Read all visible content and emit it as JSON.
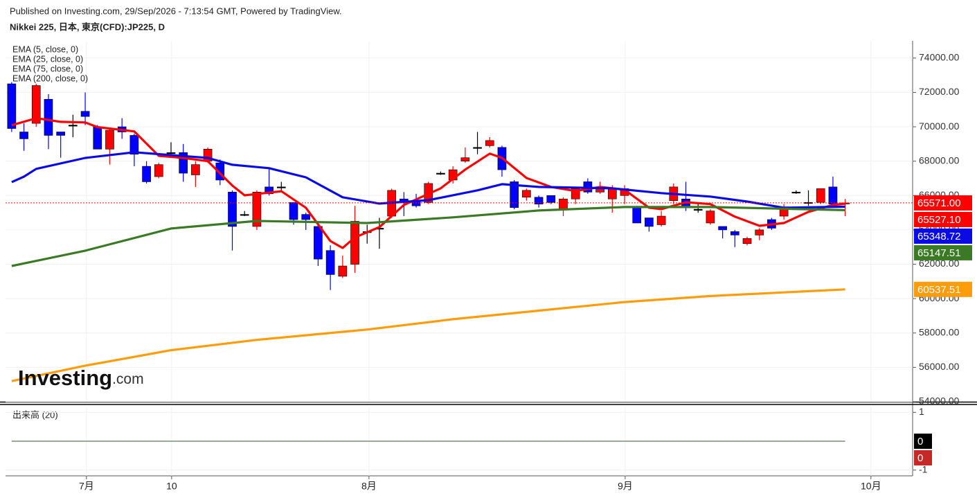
{
  "header": {
    "published": "Published on Investing.com, 29/Sep/2026 - 7:13:54 GMT, Powered by TradingView."
  },
  "logo": {
    "brand": "Investing",
    "suffix": ".com"
  },
  "chart_data": [
    {
      "type": "candlestick",
      "title": "Nikkei 225, 日本, 東京(CFD):JP225, D",
      "up_color": "#ff0000",
      "down_color": "#0000ff",
      "doji_color": "#000000",
      "xlim": [
        -0.5,
        73.5
      ],
      "ylim": [
        54000,
        75000
      ],
      "xticks": [
        {
          "value": 6.1,
          "label": "7月"
        },
        {
          "value": 13.05,
          "label": "10"
        },
        {
          "value": 29.15,
          "label": "8月"
        },
        {
          "value": 50.05,
          "label": "9月"
        },
        {
          "value": 70.1,
          "label": "10月"
        }
      ],
      "yticks": [
        {
          "value": 54000,
          "label": "54000.00"
        },
        {
          "value": 56000,
          "label": "56000.00"
        },
        {
          "value": 58000,
          "label": "58000.00"
        },
        {
          "value": 60000,
          "label": "60000.00"
        },
        {
          "value": 62000,
          "label": "62000.00"
        },
        {
          "value": 64000,
          "label": "64000.00"
        },
        {
          "value": 66000,
          "label": "66000.00"
        },
        {
          "value": 68000,
          "label": "68000.00"
        },
        {
          "value": 70000,
          "label": "70000.00"
        },
        {
          "value": 72000,
          "label": "72000.00"
        },
        {
          "value": 74000,
          "label": "74000.00"
        }
      ],
      "grid": true,
      "x": [
        0,
        1,
        2,
        3,
        4,
        5,
        6,
        7,
        8,
        9,
        10,
        11,
        12,
        13,
        14,
        15,
        16,
        17,
        18,
        19,
        20,
        21,
        22,
        23,
        24,
        25,
        26,
        27,
        28,
        29,
        30,
        31,
        32,
        33,
        34,
        35,
        36,
        37,
        38,
        39,
        40,
        41,
        42,
        43,
        44,
        45,
        46,
        47,
        48,
        49,
        50,
        51,
        52,
        53,
        54,
        55,
        56,
        57,
        58,
        59,
        60,
        61,
        62,
        63,
        64,
        65,
        66,
        67,
        68
      ],
      "open": [
        72500,
        69700,
        70200,
        71600,
        69700,
        70100,
        70900,
        70000,
        68700,
        70000,
        69500,
        67700,
        67100,
        68500,
        68500,
        67200,
        68000,
        67900,
        66200,
        64900,
        64200,
        66500,
        66500,
        65600,
        64900,
        64200,
        62800,
        61300,
        62000,
        63900,
        64100,
        64800,
        65800,
        65700,
        65600,
        67300,
        66900,
        68000,
        68800,
        68900,
        68800,
        66800,
        65900,
        65900,
        66000,
        65200,
        65800,
        66800,
        66200,
        65800,
        66000,
        65300,
        64700,
        64300,
        65700,
        65800,
        65200,
        64400,
        64200,
        63900,
        63200,
        63700,
        64600,
        64800,
        66200,
        65600,
        65600,
        66500,
        65550
      ],
      "high": [
        72600,
        70200,
        72500,
        71900,
        69700,
        70700,
        72000,
        70100,
        69900,
        70500,
        69600,
        68000,
        67900,
        69100,
        69000,
        68000,
        68800,
        68100,
        66300,
        65100,
        66300,
        67600,
        66800,
        65600,
        65000,
        64300,
        63100,
        62500,
        65400,
        64300,
        64700,
        66400,
        66200,
        66100,
        66800,
        67400,
        67700,
        68800,
        69700,
        69400,
        68900,
        66900,
        66400,
        66000,
        66000,
        65900,
        66500,
        67000,
        66800,
        66600,
        66600,
        65400,
        64700,
        65100,
        66700,
        66800,
        65500,
        65200,
        64200,
        64000,
        63600,
        64100,
        64700,
        65500,
        66300,
        66300,
        66400,
        67100,
        65800
      ],
      "low": [
        69700,
        68600,
        70000,
        68700,
        68200,
        69400,
        70100,
        68700,
        67800,
        69300,
        67700,
        66700,
        67000,
        68200,
        66800,
        66500,
        67900,
        66600,
        62800,
        64800,
        64000,
        66000,
        66300,
        64300,
        64000,
        61900,
        60500,
        61200,
        61500,
        63200,
        62900,
        64700,
        64800,
        65300,
        65500,
        67200,
        66700,
        67900,
        68400,
        68800,
        67100,
        65200,
        65700,
        65300,
        65500,
        64800,
        65500,
        66100,
        66100,
        65000,
        65500,
        64400,
        63900,
        64200,
        65500,
        65100,
        65000,
        64300,
        63500,
        63000,
        63100,
        63400,
        64000,
        64600,
        66100,
        65400,
        65500,
        65400,
        64800
      ],
      "close": [
        69900,
        69300,
        72400,
        69500,
        69500,
        70100,
        70600,
        68700,
        69800,
        69700,
        68400,
        66800,
        67800,
        68500,
        67300,
        67800,
        68700,
        66900,
        64200,
        64900,
        66200,
        66100,
        66500,
        64600,
        64600,
        62300,
        61400,
        61900,
        64500,
        63900,
        64100,
        66300,
        65600,
        65400,
        66700,
        67300,
        67500,
        68200,
        68800,
        69200,
        67500,
        65300,
        66300,
        65500,
        65600,
        65800,
        66400,
        66200,
        66500,
        66400,
        66400,
        64400,
        64200,
        64800,
        66500,
        65300,
        65200,
        65100,
        64000,
        63700,
        63500,
        64000,
        64100,
        65300,
        66200,
        65600,
        66400,
        65500,
        65571
      ],
      "series": [
        {
          "name": "EMA (5, close, 0)",
          "color": "#ff0000",
          "x": [
            0,
            2,
            4,
            6,
            7,
            10,
            12,
            14,
            16,
            18,
            19,
            21,
            22,
            24,
            26,
            27,
            28,
            30,
            32,
            35,
            37,
            39,
            40,
            42,
            44,
            46,
            48,
            50,
            52,
            53,
            55,
            57,
            59,
            61,
            63,
            65,
            67,
            68
          ],
          "values": [
            70090,
            70500,
            70290,
            70250,
            69980,
            69730,
            68310,
            68190,
            68000,
            66580,
            66010,
            66170,
            66250,
            65290,
            63350,
            62950,
            63560,
            64160,
            65450,
            66420,
            67510,
            68440,
            68190,
            67020,
            66500,
            66260,
            66500,
            66340,
            65290,
            65210,
            65610,
            65500,
            64770,
            64240,
            64400,
            65050,
            65450,
            65527.1
          ]
        },
        {
          "name": "EMA (25, close, 0)",
          "color": "#0a0ae6",
          "x": [
            0,
            1,
            2,
            6,
            10,
            16,
            18,
            21,
            24,
            27,
            30,
            34,
            38,
            40,
            43,
            49,
            53,
            57,
            60,
            63,
            68
          ],
          "values": [
            66780,
            67100,
            67550,
            68190,
            68520,
            68190,
            67790,
            67590,
            67060,
            65900,
            65530,
            65730,
            66300,
            66660,
            66500,
            66420,
            66140,
            65940,
            65650,
            65290,
            65348.72
          ]
        },
        {
          "name": "EMA (75, close, 0)",
          "color": "#3a7a24",
          "x": [
            0,
            6,
            13,
            20,
            29,
            36,
            43,
            50,
            57,
            68
          ],
          "values": [
            61900,
            62790,
            64080,
            64520,
            64400,
            64730,
            65130,
            65330,
            65330,
            65147.51
          ]
        },
        {
          "name": "EMA (200, close, 0)",
          "color": "#ff9c0a",
          "x": [
            0,
            6,
            13,
            20,
            29,
            36,
            43,
            50,
            57,
            68
          ],
          "values": [
            55200,
            56100,
            57000,
            57600,
            58200,
            58800,
            59300,
            59800,
            60150,
            60537.51
          ]
        }
      ],
      "price_labels": [
        {
          "value": 65571,
          "label": "65571.00",
          "color": "#ff0000",
          "line": true
        },
        {
          "value": 65527.1,
          "label": "65527.10",
          "color": "#ff0000"
        },
        {
          "value": 65348.72,
          "label": "65348.72",
          "color": "#0a0ae6"
        },
        {
          "value": 65147.51,
          "label": "65147.51",
          "color": "#3a7a24"
        },
        {
          "value": 60537.51,
          "label": "60537.51",
          "color": "#ff9c0a"
        }
      ]
    },
    {
      "type": "line",
      "title": "出来高 (20)",
      "ylim": [
        -1.2,
        1.2
      ],
      "yticks": [
        1,
        -1
      ],
      "grid": true,
      "series": [
        {
          "color": "#9aa89a",
          "values": [
            0,
            0,
            0,
            0,
            0,
            0,
            0,
            0,
            0,
            0,
            0,
            0,
            0,
            0,
            0,
            0,
            0,
            0,
            0,
            0,
            0,
            0,
            0,
            0,
            0,
            0,
            0,
            0,
            0,
            0,
            0,
            0,
            0,
            0,
            0,
            0,
            0,
            0,
            0,
            0,
            0,
            0,
            0,
            0,
            0,
            0,
            0,
            0,
            0,
            0,
            0,
            0,
            0,
            0,
            0,
            0,
            0,
            0,
            0,
            0,
            0,
            0,
            0,
            0,
            0,
            0,
            0,
            0,
            0
          ]
        }
      ],
      "price_labels": [
        {
          "value": 0,
          "label": "0",
          "color": "#000000"
        },
        {
          "value": 0,
          "label": "0",
          "color": "#c62828"
        }
      ]
    }
  ]
}
